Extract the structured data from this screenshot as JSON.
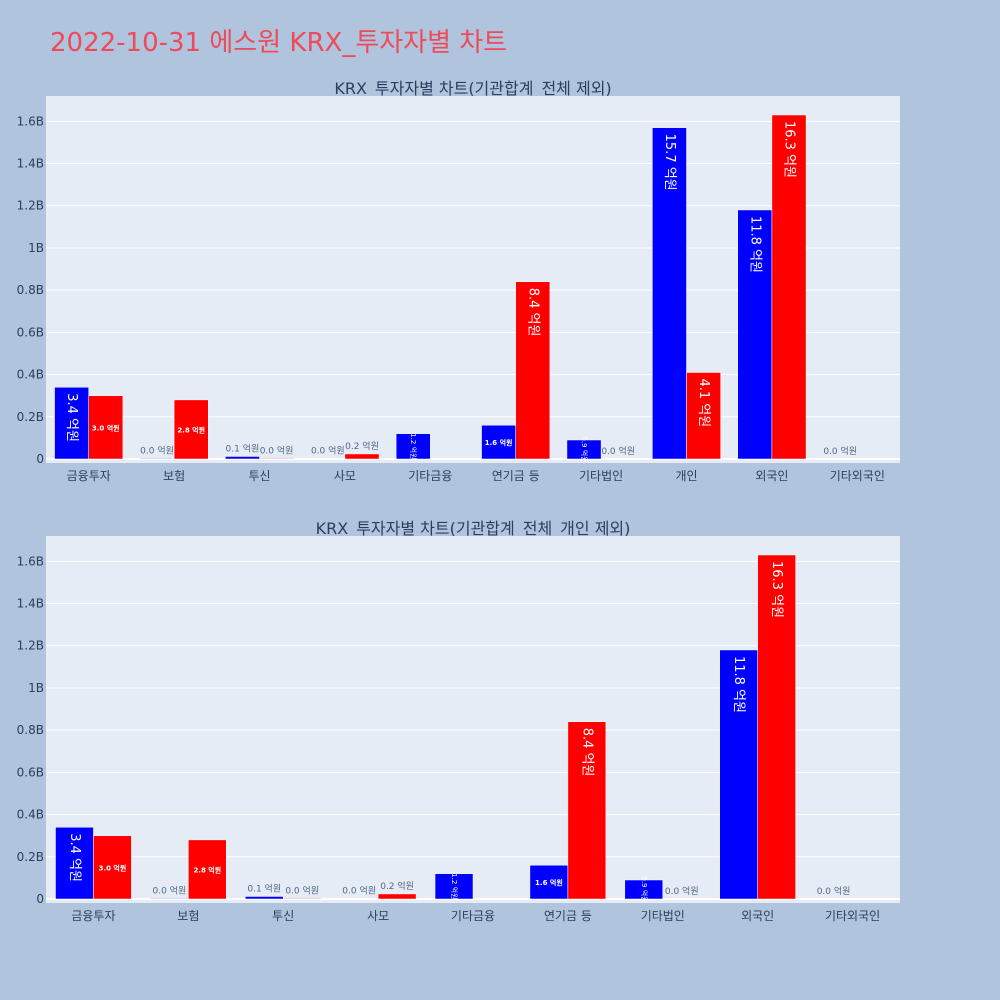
{
  "page_title": "2022-10-31 에스원 KRX_투자자별 차트",
  "colors": {
    "background": "#b0c4de",
    "plot_background": "#e5ecf6",
    "title": "#ef4a5a",
    "series_a": "#0000ff",
    "series_b": "#ff0000"
  },
  "chart_data": [
    {
      "type": "bar",
      "title": "KRX_투자자별 차트(기관합계_전체 제외)",
      "categories": [
        "금융투자",
        "보험",
        "투신",
        "사모",
        "기타금융",
        "연기금 등",
        "기타법인",
        "개인",
        "외국인",
        "기타외국인"
      ],
      "series": [
        {
          "color": "#0000ff",
          "values": [
            0.34,
            0.003,
            0.012,
            0.002,
            0.12,
            0.16,
            0.09,
            1.57,
            1.18,
            0
          ],
          "labels": [
            "3.4 억원",
            "0.0 억원",
            "0.1 억원",
            "0.0 억원",
            "1.2 억원",
            "1.6 억원",
            "0.9 억원",
            "15.7 억원",
            "11.8 억원",
            "0.0 억원"
          ]
        },
        {
          "color": "#ff0000",
          "values": [
            0.3,
            0.28,
            0.003,
            0.024,
            0,
            0.84,
            0,
            0.41,
            1.63,
            null
          ],
          "labels": [
            "3.0 억원",
            "2.8 억원",
            "0.0 억원",
            "0.2 억원",
            "",
            "8.4 억원",
            "0.0 억원",
            "4.1 억원",
            "16.3 억원",
            ""
          ]
        }
      ],
      "yticks": [
        0,
        0.2,
        0.4,
        0.6,
        0.8,
        1.0,
        1.2,
        1.4,
        1.6
      ],
      "ytick_labels": [
        "0",
        "0.2B",
        "0.4B",
        "0.6B",
        "0.8B",
        "1B",
        "1.2B",
        "1.4B",
        "1.6B"
      ],
      "ylim": [
        0,
        1.72
      ],
      "grid": true
    },
    {
      "type": "bar",
      "title": "KRX_투자자별 차트(기관합계_전체_개인 제외)",
      "categories": [
        "금융투자",
        "보험",
        "투신",
        "사모",
        "기타금융",
        "연기금 등",
        "기타법인",
        "외국인",
        "기타외국인"
      ],
      "series": [
        {
          "color": "#0000ff",
          "values": [
            0.34,
            0.003,
            0.012,
            0.002,
            0.12,
            0.16,
            0.09,
            1.18,
            0
          ],
          "labels": [
            "3.4 억원",
            "0.0 억원",
            "0.1 억원",
            "0.0 억원",
            "1.2 억원",
            "1.6 억원",
            "0.9 억원",
            "11.8 억원",
            "0.0 억원"
          ]
        },
        {
          "color": "#ff0000",
          "values": [
            0.3,
            0.28,
            0.003,
            0.024,
            0,
            0.84,
            0,
            1.63,
            null
          ],
          "labels": [
            "3.0 억원",
            "2.8 억원",
            "0.0 억원",
            "0.2 억원",
            "",
            "8.4 억원",
            "0.0 억원",
            "16.3 억원",
            ""
          ]
        }
      ],
      "yticks": [
        0,
        0.2,
        0.4,
        0.6,
        0.8,
        1.0,
        1.2,
        1.4,
        1.6
      ],
      "ytick_labels": [
        "0",
        "0.2B",
        "0.4B",
        "0.6B",
        "0.8B",
        "1B",
        "1.2B",
        "1.4B",
        "1.6B"
      ],
      "ylim": [
        0,
        1.72
      ],
      "grid": true
    }
  ]
}
